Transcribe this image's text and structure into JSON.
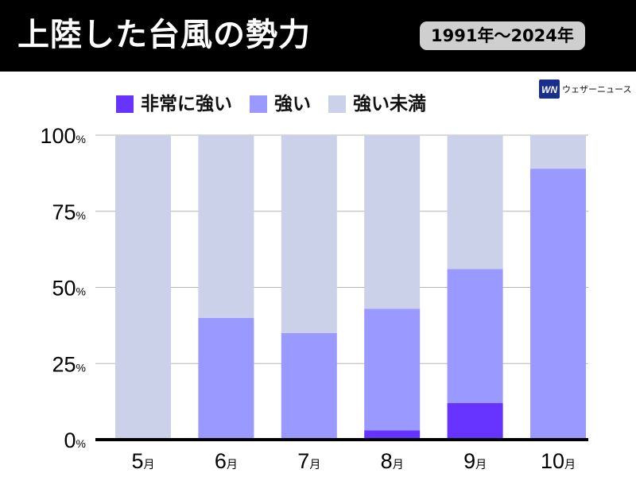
{
  "header": {
    "title": "上陸した台風の勢力",
    "period": "1991年〜2024年"
  },
  "brand": {
    "logo_icon": "weathernews-logo-icon",
    "name": "ウェザーニュース"
  },
  "chart_data": {
    "type": "bar",
    "stacked": true,
    "categories": [
      "5月",
      "6月",
      "7月",
      "8月",
      "9月",
      "10月"
    ],
    "series": [
      {
        "name": "非常に強い",
        "color": "#6633ff",
        "values": [
          0,
          0,
          0,
          3,
          12,
          0
        ]
      },
      {
        "name": "強い",
        "color": "#9999ff",
        "values": [
          0,
          40,
          35,
          40,
          44,
          89
        ]
      },
      {
        "name": "強い未満",
        "color": "#ccd1ea",
        "values": [
          100,
          60,
          65,
          57,
          44,
          11
        ]
      }
    ],
    "yticks": [
      {
        "value": 0,
        "number": "0",
        "unit": "%"
      },
      {
        "value": 25,
        "number": "25",
        "unit": "%"
      },
      {
        "value": 50,
        "number": "50",
        "unit": "%"
      },
      {
        "value": 75,
        "number": "75",
        "unit": "%"
      },
      {
        "value": 100,
        "number": "100",
        "unit": "%"
      }
    ],
    "xtick_parts": [
      {
        "number": "5",
        "unit": "月"
      },
      {
        "number": "6",
        "unit": "月"
      },
      {
        "number": "7",
        "unit": "月"
      },
      {
        "number": "8",
        "unit": "月"
      },
      {
        "number": "9",
        "unit": "月"
      },
      {
        "number": "10",
        "unit": "月"
      }
    ],
    "ylim": [
      0,
      100
    ],
    "grid": true,
    "legend_position": "top"
  }
}
